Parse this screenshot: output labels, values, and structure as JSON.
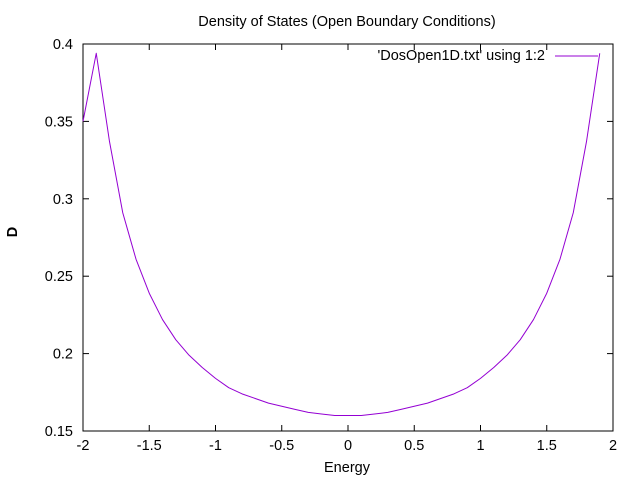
{
  "chart_data": {
    "type": "line",
    "title": "Density of States (Open Boundary Conditions)",
    "xlabel": "Energy",
    "ylabel": "D",
    "xlim": [
      -2,
      2
    ],
    "ylim": [
      0.15,
      0.4
    ],
    "xticks": [
      -2,
      -1.5,
      -1,
      -0.5,
      0,
      0.5,
      1,
      1.5,
      2
    ],
    "xtick_labels": [
      "-2",
      "-1.5",
      "-1",
      "-0.5",
      "0",
      "0.5",
      "1",
      "1.5",
      "2"
    ],
    "yticks": [
      0.15,
      0.2,
      0.25,
      0.3,
      0.35,
      0.4
    ],
    "ytick_labels": [
      "0.15",
      "0.2",
      "0.25",
      "0.3",
      "0.35",
      "0.4"
    ],
    "grid": false,
    "legend_position": "top-right",
    "series": [
      {
        "name": "'DosOpen1D.txt' using 1:2",
        "color": "#9400d3",
        "x": [
          -2.0,
          -1.9,
          -1.8,
          -1.7,
          -1.6,
          -1.5,
          -1.4,
          -1.3,
          -1.2,
          -1.1,
          -1.0,
          -0.9,
          -0.8,
          -0.7,
          -0.6,
          -0.5,
          -0.4,
          -0.3,
          -0.2,
          -0.1,
          0.0,
          0.1,
          0.2,
          0.3,
          0.4,
          0.5,
          0.6,
          0.7,
          0.8,
          0.9,
          1.0,
          1.1,
          1.2,
          1.3,
          1.4,
          1.5,
          1.6,
          1.7,
          1.8,
          1.9
        ],
        "y": [
          0.35,
          0.394,
          0.337,
          0.291,
          0.261,
          0.239,
          0.222,
          0.209,
          0.199,
          0.191,
          0.184,
          0.178,
          0.174,
          0.171,
          0.168,
          0.166,
          0.164,
          0.162,
          0.161,
          0.16,
          0.16,
          0.16,
          0.161,
          0.162,
          0.164,
          0.166,
          0.168,
          0.171,
          0.174,
          0.178,
          0.184,
          0.191,
          0.199,
          0.209,
          0.222,
          0.239,
          0.261,
          0.291,
          0.337,
          0.394
        ]
      }
    ]
  }
}
